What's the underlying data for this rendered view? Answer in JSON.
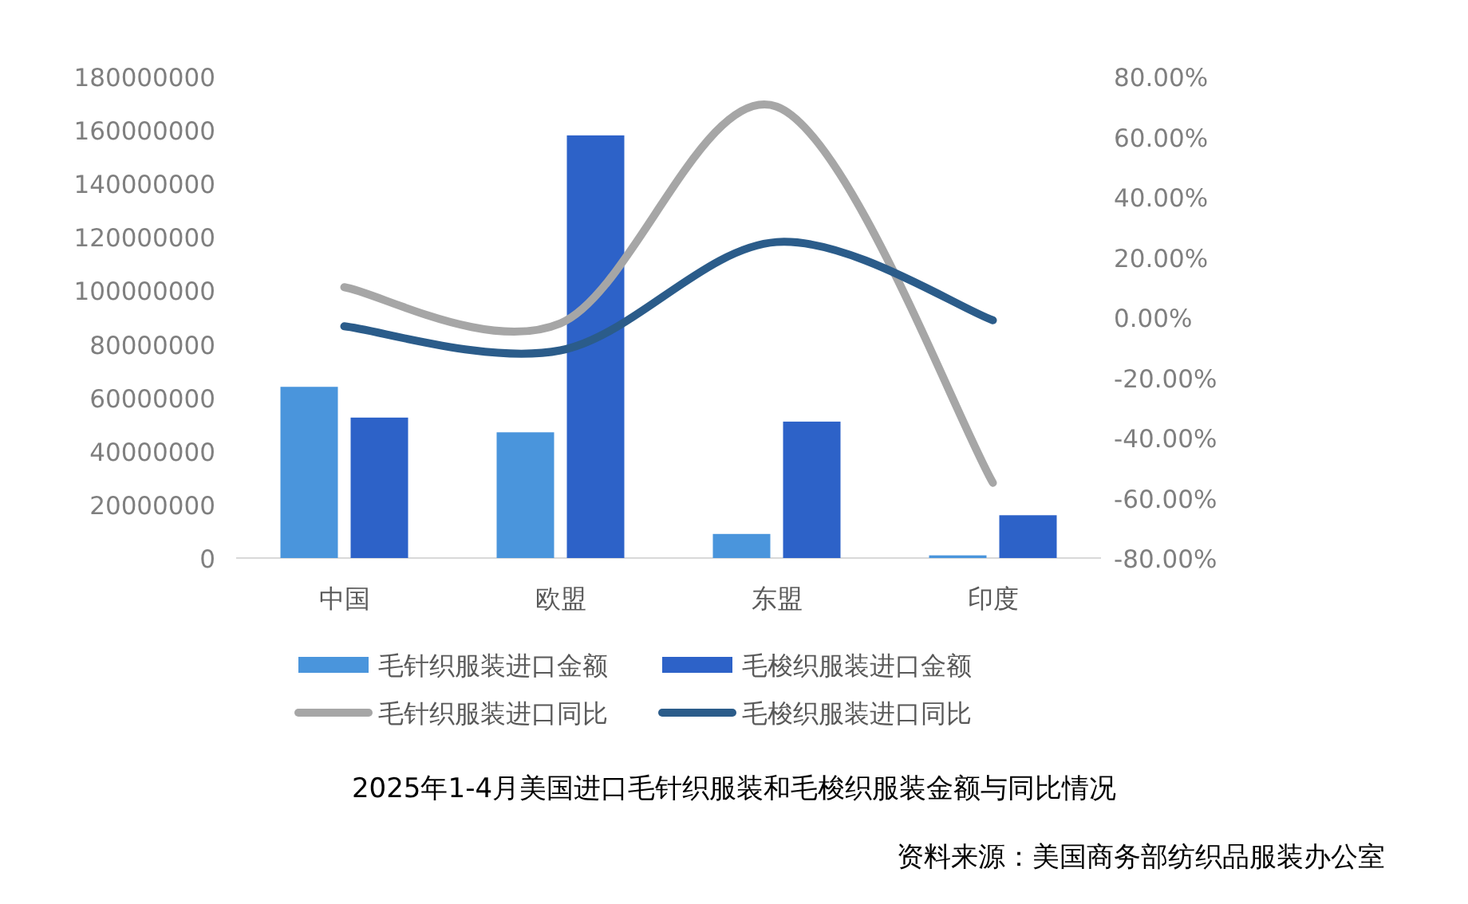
{
  "chart_data": {
    "type": "bar",
    "title": "2025年1-4月美国进口毛针织服装和毛梭织服装金额与同比情况",
    "annotations": [
      "资料来源：美国商务部纺织品服装办公室"
    ],
    "categories": [
      "中国",
      "欧盟",
      "东盟",
      "印度"
    ],
    "series": [
      {
        "name": "毛针织服装进口金额",
        "color": "#4a95dc",
        "values": [
          64000000,
          47000000,
          9000000,
          1000000
        ]
      },
      {
        "name": "毛梭织服装进口金额",
        "color": "#2d62c8",
        "values": [
          52500000,
          158000000,
          51000000,
          16000000
        ]
      },
      {
        "name": "毛针织服装进口同比",
        "type": "line",
        "axis": "y2",
        "color": "#a6a6a6",
        "values": [
          10,
          -2,
          70,
          -55
        ]
      },
      {
        "name": "毛梭织服装进口同比",
        "type": "line",
        "axis": "y2",
        "color": "#2b5c8a",
        "values": [
          -3,
          -11,
          25,
          -1
        ]
      }
    ],
    "ylim": [
      0,
      180000000
    ],
    "yticks": [
      0,
      20000000,
      40000000,
      60000000,
      80000000,
      100000000,
      120000000,
      140000000,
      160000000,
      180000000
    ],
    "y2lim": [
      -80,
      80
    ],
    "y2ticks": [
      {
        "value": -80,
        "label": "-80.00%"
      },
      {
        "value": -60,
        "label": "-60.00%"
      },
      {
        "value": -40,
        "label": "-40.00%"
      },
      {
        "value": -20,
        "label": "-20.00%"
      },
      {
        "value": 0,
        "label": "0.00%"
      },
      {
        "value": 20,
        "label": "20.00%"
      },
      {
        "value": 40,
        "label": "40.00%"
      },
      {
        "value": 60,
        "label": "60.00%"
      },
      {
        "value": 80,
        "label": "80.00%"
      }
    ],
    "grid": false,
    "legend": "bottom"
  }
}
